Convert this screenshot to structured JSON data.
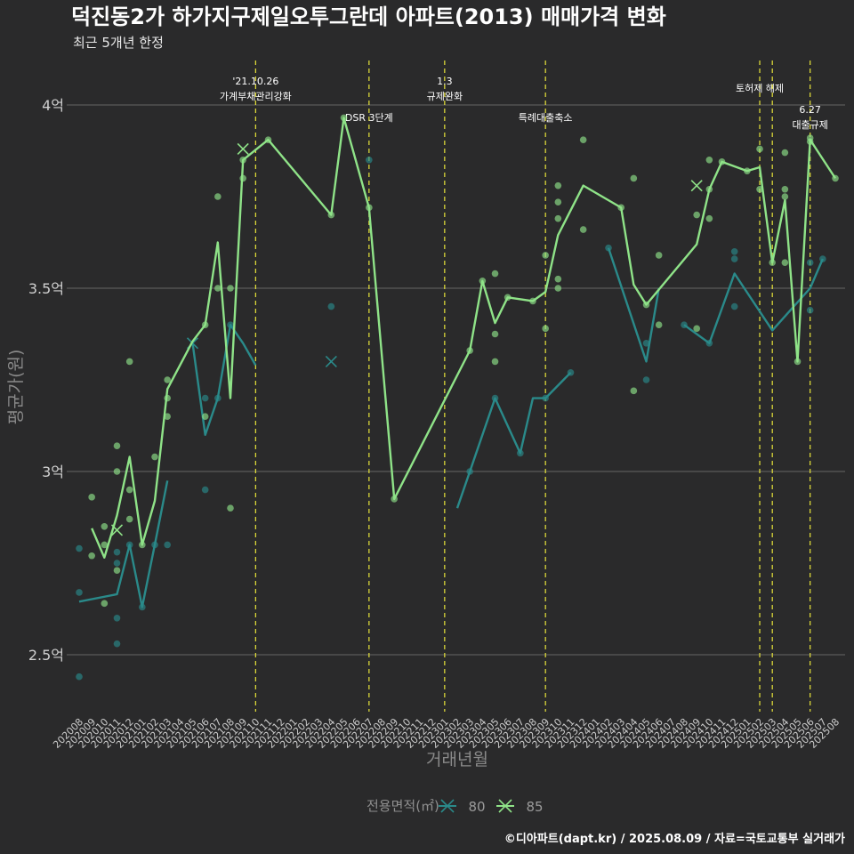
{
  "chart_data": {
    "type": "line",
    "title": "덕진동2가 하가지구제일오투그란데 아파트(2013) 매매가격 변화",
    "subtitle": "최근 5개년 한정",
    "xlabel": "거래년월",
    "ylabel": "평균가(원)",
    "caption": "©디아파트(dapt.kr) / 2025.08.09 / 자료=국토교통부 실거래가",
    "categories": [
      "202008",
      "202009",
      "202010",
      "202011",
      "202012",
      "202101",
      "202102",
      "202103",
      "202104",
      "202105",
      "202106",
      "202107",
      "202108",
      "202109",
      "202110",
      "202111",
      "202112",
      "202201",
      "202202",
      "202203",
      "202204",
      "202205",
      "202206",
      "202207",
      "202208",
      "202209",
      "202210",
      "202211",
      "202212",
      "202301",
      "202302",
      "202303",
      "202304",
      "202305",
      "202306",
      "202307",
      "202308",
      "202309",
      "202310",
      "202311",
      "202312",
      "202401",
      "202402",
      "202403",
      "202404",
      "202405",
      "202406",
      "202407",
      "202408",
      "202409",
      "202410",
      "202411",
      "202412",
      "202501",
      "202502",
      "202503",
      "202504",
      "202505",
      "202506",
      "202507",
      "202508"
    ],
    "y_ticks": [
      {
        "value": 2.5,
        "label": "2.5억"
      },
      {
        "value": 3.0,
        "label": "3억"
      },
      {
        "value": 3.5,
        "label": "3.5억"
      },
      {
        "value": 4.0,
        "label": "4억"
      }
    ],
    "ylim": [
      2.35,
      4.12
    ],
    "grid": true,
    "legend": {
      "title": "전용면적(㎡)",
      "position": "bottom"
    },
    "events": [
      {
        "month": "202110",
        "label_lines": [
          "'21.10.26",
          "가계부채관리강화"
        ]
      },
      {
        "month": "202207",
        "label_lines": [
          "DSR 3단계"
        ]
      },
      {
        "month": "202301",
        "label_lines": [
          "1.3",
          "규제완화"
        ]
      },
      {
        "month": "202309",
        "label_lines": [
          "특례대출축소"
        ]
      },
      {
        "month": "202502",
        "label_lines": [
          "토허제 해제"
        ]
      },
      {
        "month": "202503",
        "label_lines": [
          ""
        ]
      },
      {
        "month": "202506",
        "label_lines": [
          "6.27",
          "대출규제"
        ]
      }
    ],
    "series": [
      {
        "name": "80",
        "color": "#2a8a8a",
        "line": [
          {
            "x": "202008",
            "y": 2.645
          },
          {
            "x": "202011",
            "y": 2.665
          },
          {
            "x": "202012",
            "y": 2.8
          },
          {
            "x": "202101",
            "y": 2.63
          },
          {
            "x": "202102",
            "y": 2.8
          },
          {
            "x": "202103",
            "y": 2.975
          },
          null,
          {
            "x": "202105",
            "y": 3.35
          },
          {
            "x": "202106",
            "y": 3.1
          },
          {
            "x": "202107",
            "y": 3.2
          },
          {
            "x": "202108",
            "y": 3.4
          },
          {
            "x": "202109",
            "y": 3.35
          },
          {
            "x": "202110",
            "y": 3.29
          },
          null,
          {
            "x": "202302",
            "y": 2.9
          },
          {
            "x": "202303",
            "y": 3.0
          },
          {
            "x": "202305",
            "y": 3.2
          },
          {
            "x": "202307",
            "y": 3.05
          },
          {
            "x": "202308",
            "y": 3.2
          },
          {
            "x": "202309",
            "y": 3.2
          },
          {
            "x": "202311",
            "y": 3.27
          },
          null,
          {
            "x": "202402",
            "y": 3.61
          },
          {
            "x": "202405",
            "y": 3.3
          },
          {
            "x": "202406",
            "y": 3.5
          },
          null,
          {
            "x": "202408",
            "y": 3.4
          },
          {
            "x": "202410",
            "y": 3.35
          },
          {
            "x": "202412",
            "y": 3.54
          },
          {
            "x": "202503",
            "y": 3.385
          },
          {
            "x": "202506",
            "y": 3.5
          },
          {
            "x": "202507",
            "y": 3.58
          }
        ],
        "points": [
          {
            "x": "202008",
            "y": 2.79
          },
          {
            "x": "202008",
            "y": 2.67
          },
          {
            "x": "202008",
            "y": 2.44
          },
          {
            "x": "202011",
            "y": 2.78
          },
          {
            "x": "202011",
            "y": 2.75
          },
          {
            "x": "202011",
            "y": 2.6
          },
          {
            "x": "202011",
            "y": 2.53
          },
          {
            "x": "202012",
            "y": 2.8
          },
          {
            "x": "202101",
            "y": 2.63
          },
          {
            "x": "202102",
            "y": 2.8
          },
          {
            "x": "202103",
            "y": 2.8
          },
          {
            "x": "202106",
            "y": 3.2
          },
          {
            "x": "202106",
            "y": 2.95
          },
          {
            "x": "202107",
            "y": 3.2
          },
          {
            "x": "202108",
            "y": 3.4
          },
          {
            "x": "202204",
            "y": 3.45
          },
          {
            "x": "202207",
            "y": 3.85
          },
          {
            "x": "202303",
            "y": 3.0
          },
          {
            "x": "202305",
            "y": 3.2
          },
          {
            "x": "202307",
            "y": 3.05
          },
          {
            "x": "202309",
            "y": 3.2
          },
          {
            "x": "202311",
            "y": 3.27
          },
          {
            "x": "202402",
            "y": 3.61
          },
          {
            "x": "202405",
            "y": 3.35
          },
          {
            "x": "202405",
            "y": 3.25
          },
          {
            "x": "202408",
            "y": 3.4
          },
          {
            "x": "202410",
            "y": 3.35
          },
          {
            "x": "202412",
            "y": 3.6
          },
          {
            "x": "202412",
            "y": 3.58
          },
          {
            "x": "202412",
            "y": 3.45
          },
          {
            "x": "202506",
            "y": 3.57
          },
          {
            "x": "202506",
            "y": 3.44
          },
          {
            "x": "202507",
            "y": 3.58
          }
        ],
        "cancelled": [
          {
            "x": "202204",
            "y": 3.3
          },
          {
            "x": "202105",
            "y": 3.35
          }
        ]
      },
      {
        "name": "85",
        "color": "#8fe388",
        "line": [
          {
            "x": "202009",
            "y": 2.845
          },
          {
            "x": "202010",
            "y": 2.765
          },
          {
            "x": "202011",
            "y": 2.88
          },
          {
            "x": "202012",
            "y": 3.04
          },
          {
            "x": "202101",
            "y": 2.8
          },
          {
            "x": "202102",
            "y": 2.92
          },
          {
            "x": "202103",
            "y": 3.225
          },
          {
            "x": "202105",
            "y": 3.355
          },
          {
            "x": "202106",
            "y": 3.4
          },
          {
            "x": "202107",
            "y": 3.625
          },
          {
            "x": "202108",
            "y": 3.2
          },
          {
            "x": "202109",
            "y": 3.85
          },
          {
            "x": "202111",
            "y": 3.905
          },
          {
            "x": "202204",
            "y": 3.7
          },
          {
            "x": "202205",
            "y": 3.965
          },
          {
            "x": "202207",
            "y": 3.72
          },
          {
            "x": "202209",
            "y": 2.925
          },
          {
            "x": "202303",
            "y": 3.33
          },
          {
            "x": "202304",
            "y": 3.52
          },
          {
            "x": "202305",
            "y": 3.405
          },
          {
            "x": "202306",
            "y": 3.475
          },
          {
            "x": "202308",
            "y": 3.465
          },
          {
            "x": "202309",
            "y": 3.49
          },
          {
            "x": "202310",
            "y": 3.645
          },
          {
            "x": "202312",
            "y": 3.78
          },
          {
            "x": "202403",
            "y": 3.72
          },
          {
            "x": "202404",
            "y": 3.51
          },
          {
            "x": "202405",
            "y": 3.455
          },
          {
            "x": "202409",
            "y": 3.62
          },
          {
            "x": "202410",
            "y": 3.77
          },
          {
            "x": "202411",
            "y": 3.845
          },
          {
            "x": "202501",
            "y": 3.82
          },
          {
            "x": "202502",
            "y": 3.83
          },
          {
            "x": "202503",
            "y": 3.57
          },
          {
            "x": "202504",
            "y": 3.74
          },
          {
            "x": "202505",
            "y": 3.3
          },
          {
            "x": "202506",
            "y": 3.905
          },
          {
            "x": "202508",
            "y": 3.8
          }
        ],
        "points": [
          {
            "x": "202009",
            "y": 2.93
          },
          {
            "x": "202009",
            "y": 2.77
          },
          {
            "x": "202010",
            "y": 2.85
          },
          {
            "x": "202010",
            "y": 2.8
          },
          {
            "x": "202010",
            "y": 2.64
          },
          {
            "x": "202011",
            "y": 3.07
          },
          {
            "x": "202011",
            "y": 3.0
          },
          {
            "x": "202011",
            "y": 2.73
          },
          {
            "x": "202012",
            "y": 3.3
          },
          {
            "x": "202012",
            "y": 2.95
          },
          {
            "x": "202012",
            "y": 2.87
          },
          {
            "x": "202101",
            "y": 2.8
          },
          {
            "x": "202102",
            "y": 3.04
          },
          {
            "x": "202103",
            "y": 3.25
          },
          {
            "x": "202103",
            "y": 3.2
          },
          {
            "x": "202103",
            "y": 3.15
          },
          {
            "x": "202106",
            "y": 3.4
          },
          {
            "x": "202106",
            "y": 3.15
          },
          {
            "x": "202107",
            "y": 3.75
          },
          {
            "x": "202107",
            "y": 3.5
          },
          {
            "x": "202108",
            "y": 3.5
          },
          {
            "x": "202108",
            "y": 2.9
          },
          {
            "x": "202109",
            "y": 3.85
          },
          {
            "x": "202109",
            "y": 3.8
          },
          {
            "x": "202111",
            "y": 3.905
          },
          {
            "x": "202204",
            "y": 3.7
          },
          {
            "x": "202205",
            "y": 3.965
          },
          {
            "x": "202207",
            "y": 3.72
          },
          {
            "x": "202209",
            "y": 2.925
          },
          {
            "x": "202303",
            "y": 3.33
          },
          {
            "x": "202304",
            "y": 3.52
          },
          {
            "x": "202305",
            "y": 3.54
          },
          {
            "x": "202305",
            "y": 3.375
          },
          {
            "x": "202305",
            "y": 3.3
          },
          {
            "x": "202306",
            "y": 3.475
          },
          {
            "x": "202308",
            "y": 3.465
          },
          {
            "x": "202309",
            "y": 3.59
          },
          {
            "x": "202309",
            "y": 3.39
          },
          {
            "x": "202310",
            "y": 3.78
          },
          {
            "x": "202310",
            "y": 3.735
          },
          {
            "x": "202310",
            "y": 3.69
          },
          {
            "x": "202310",
            "y": 3.525
          },
          {
            "x": "202310",
            "y": 3.5
          },
          {
            "x": "202312",
            "y": 3.905
          },
          {
            "x": "202312",
            "y": 3.66
          },
          {
            "x": "202403",
            "y": 3.72
          },
          {
            "x": "202404",
            "y": 3.8
          },
          {
            "x": "202404",
            "y": 3.22
          },
          {
            "x": "202405",
            "y": 3.455
          },
          {
            "x": "202406",
            "y": 3.59
          },
          {
            "x": "202406",
            "y": 3.4
          },
          {
            "x": "202409",
            "y": 3.7
          },
          {
            "x": "202409",
            "y": 3.39
          },
          {
            "x": "202410",
            "y": 3.85
          },
          {
            "x": "202410",
            "y": 3.77
          },
          {
            "x": "202410",
            "y": 3.69
          },
          {
            "x": "202411",
            "y": 3.845
          },
          {
            "x": "202501",
            "y": 3.82
          },
          {
            "x": "202502",
            "y": 3.88
          },
          {
            "x": "202502",
            "y": 3.77
          },
          {
            "x": "202503",
            "y": 3.57
          },
          {
            "x": "202504",
            "y": 3.87
          },
          {
            "x": "202504",
            "y": 3.77
          },
          {
            "x": "202504",
            "y": 3.75
          },
          {
            "x": "202504",
            "y": 3.57
          },
          {
            "x": "202505",
            "y": 3.3
          },
          {
            "x": "202506",
            "y": 3.91
          },
          {
            "x": "202506",
            "y": 3.9
          },
          {
            "x": "202508",
            "y": 3.8
          }
        ],
        "cancelled": [
          {
            "x": "202011",
            "y": 2.84
          },
          {
            "x": "202109",
            "y": 3.88
          },
          {
            "x": "202409",
            "y": 3.78
          }
        ]
      }
    ]
  }
}
